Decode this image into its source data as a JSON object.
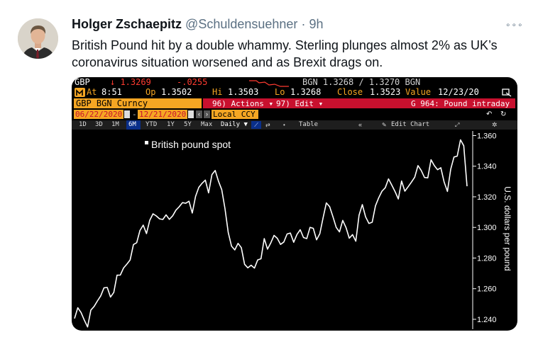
{
  "tweet": {
    "author_name": "Holger Zschaepitz",
    "author_handle": "@Schuldensuehner",
    "separator": "·",
    "time": "9h",
    "more_glyph": "∘∘∘",
    "text_line1": "British Pound hit by a double whammy. Sterling plunges almost 2% as UK’s",
    "text_line2": "coronavirus situation worsened and as Brexit drags on."
  },
  "terminal": {
    "ticker": "GBP",
    "last": "↓ 1.3269",
    "change": "-.0255",
    "source_quote": "BGN 1.3268 / 1.3270 BGN",
    "at_label": "At",
    "at_value": "8:51",
    "open_label": "Op",
    "open_value": "1.3502",
    "hi_label": "Hi",
    "hi_value": "1.3503",
    "lo_label": "Lo",
    "lo_value": "1.3268",
    "close_label": "Close",
    "close_value": "1.3523",
    "value_label": "Value",
    "value_date": "12/23/20",
    "security": "GBP BGN Curncy",
    "actions_btn": "96) Actions ▾",
    "edit_btn": "97) Edit ▾",
    "page_title": "G 964: Pound intraday",
    "date_from": "06/22/2020",
    "date_to": "12/21/2020",
    "currency_select": "Local CCY",
    "periods": [
      "1D",
      "3D",
      "1M",
      "6M",
      "YTD",
      "1Y",
      "5Y",
      "Max"
    ],
    "active_period": "6M",
    "frequency": "Daily ▼",
    "table_btn": "Table",
    "edit_chart_btn": "Edit Chart",
    "colors": {
      "orange": "#f5a623",
      "red": "#ff3b30",
      "red_bar": "#c8102e",
      "blue_bar": "#0a2f8a"
    }
  },
  "chart_data": {
    "type": "line",
    "title": "",
    "legend": [
      "British pound spot"
    ],
    "xlabel": "",
    "ylabel": "U.S. dollars per pound",
    "y_ticks": [
      "1.360",
      "1.340",
      "1.320",
      "1.300",
      "1.280",
      "1.260",
      "1.240"
    ],
    "ylim": [
      1.2335,
      1.363
    ],
    "x_range": [
      "06/22/2020",
      "12/21/2020"
    ],
    "series": [
      {
        "name": "British pound spot",
        "values": [
          1.2405,
          1.2475,
          1.2444,
          1.2394,
          1.235,
          1.246,
          1.2484,
          1.252,
          1.2553,
          1.2605,
          1.2608,
          1.2545,
          1.2575,
          1.2688,
          1.2689,
          1.2735,
          1.276,
          1.2787,
          1.2888,
          1.29,
          1.298,
          1.3015,
          1.296,
          1.3047,
          1.3089,
          1.3075,
          1.3056,
          1.3052,
          1.3082,
          1.3053,
          1.3076,
          1.3113,
          1.3135,
          1.3162,
          1.3158,
          1.3171,
          1.3094,
          1.3202,
          1.3262,
          1.3288,
          1.3309,
          1.3226,
          1.3345,
          1.3372,
          1.3302,
          1.3247,
          1.3122,
          1.2966,
          1.2878,
          1.2853,
          1.2896,
          1.2868,
          1.2759,
          1.2736,
          1.2753,
          1.2734,
          1.2788,
          1.2795,
          1.2927,
          1.2858,
          1.2899,
          1.2948,
          1.2929,
          1.2889,
          1.2905,
          1.2957,
          1.2963,
          1.2903,
          1.2954,
          1.2985,
          1.2934,
          1.2927,
          1.3,
          1.2994,
          1.2919,
          1.2959,
          1.3063,
          1.316,
          1.3136,
          1.307,
          1.3,
          1.2971,
          1.3046,
          1.2999,
          1.293,
          1.2953,
          1.291,
          1.308,
          1.3149,
          1.3069,
          1.3026,
          1.3034,
          1.3141,
          1.3194,
          1.3237,
          1.3259,
          1.3317,
          1.3276,
          1.3234,
          1.3186,
          1.3303,
          1.3237,
          1.3266,
          1.3296,
          1.3328,
          1.3404,
          1.3372,
          1.3326,
          1.3324,
          1.3442,
          1.3404,
          1.3377,
          1.339,
          1.3297,
          1.3235,
          1.338,
          1.346,
          1.3466,
          1.3572,
          1.3534,
          1.3269
        ]
      }
    ]
  }
}
